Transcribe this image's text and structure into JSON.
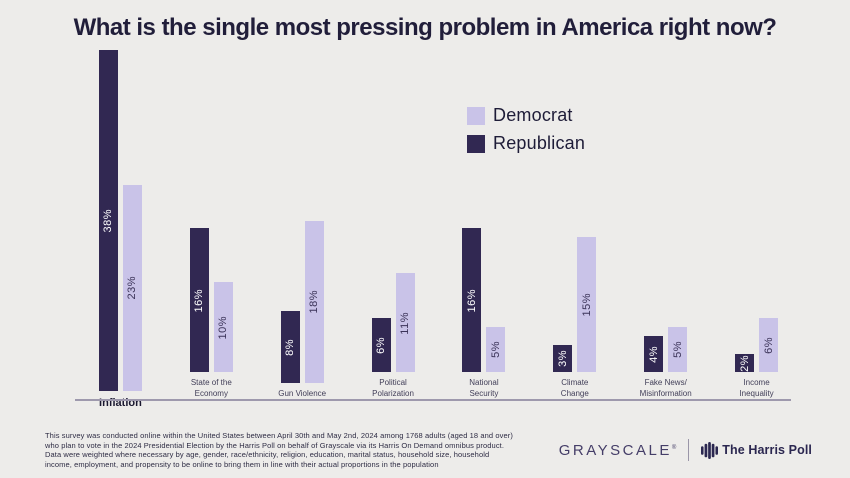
{
  "chart_data": {
    "type": "bar",
    "title": "What is the single most pressing problem in America right now?",
    "categories": [
      "Inflation",
      "State of the Economy",
      "Gun Violence",
      "Political Polarization",
      "National Security",
      "Climate Change",
      "Fake News/Misinformation",
      "Income Inequality"
    ],
    "category_label_lines": [
      [
        "Inflation"
      ],
      [
        "State of the",
        "Economy"
      ],
      [
        "Gun Violence"
      ],
      [
        "Political",
        "Polarization"
      ],
      [
        "National",
        "Security"
      ],
      [
        "Climate",
        "Change"
      ],
      [
        "Fake News/",
        "Misinformation"
      ],
      [
        "Income",
        "Inequality"
      ]
    ],
    "series": [
      {
        "name": "Republican",
        "color": "#312852",
        "label_color": "#ffffff",
        "values": [
          38,
          16,
          8,
          6,
          16,
          3,
          4,
          2
        ]
      },
      {
        "name": "Democrat",
        "color": "#c9c3e8",
        "label_color": "#3b3358",
        "values": [
          23,
          10,
          18,
          11,
          5,
          15,
          5,
          6
        ]
      }
    ],
    "value_suffix": "%",
    "ylim": [
      0,
      39
    ],
    "grid": false,
    "xlabel": "",
    "ylabel": "",
    "legend_position": "upper-right-inside"
  },
  "legend": {
    "items": [
      {
        "label": "Democrat",
        "color": "#c9c3e8"
      },
      {
        "label": "Republican",
        "color": "#312852"
      }
    ]
  },
  "footnote": {
    "lines": [
      "This survey was conducted online within the United States between April 30th and May 2nd, 2024 among 1768 adults (aged 18 and over)",
      "who plan to vote in the 2024 Presidential Election by the Harris Poll on behalf of Grayscale via its Harris On Demand omnibus product.",
      "Data were weighted where necessary by age, gender, race/ethnicity, religion, education, marital status, household size, household",
      "income, employment, and propensity to be online to bring them in line with their actual proportions in the population"
    ]
  },
  "footer": {
    "grayscale_logo_text": "GRAYSCALE",
    "grayscale_trademark": "®",
    "harris_poll_text": "The Harris Poll"
  },
  "colors": {
    "background": "#edecea",
    "title": "#211e3a",
    "axis_line": "#9e99ad"
  }
}
